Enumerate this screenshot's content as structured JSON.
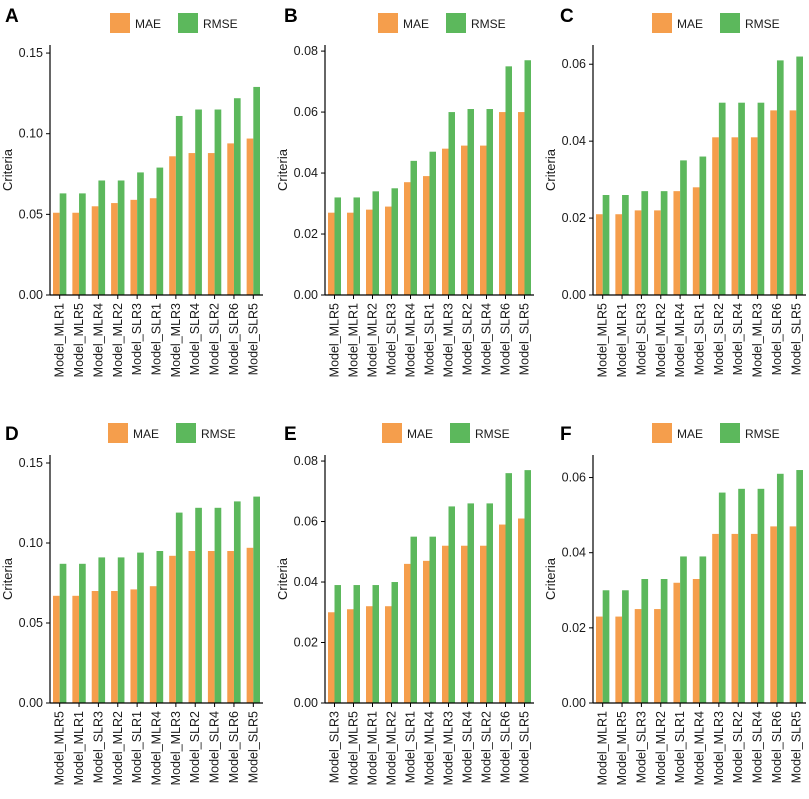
{
  "colors": {
    "MAE": "#F59E4C",
    "RMSE": "#5CB85C",
    "axis": "#000000",
    "text": "#1a1a1a"
  },
  "legend": {
    "entries": [
      "MAE",
      "RMSE"
    ]
  },
  "chart_data": [
    {
      "panel": "A",
      "type": "bar",
      "ylabel": "Criteria",
      "xlabel": "",
      "ylim": [
        0,
        0.155
      ],
      "yticks": [
        0.0,
        0.05,
        0.1,
        0.15
      ],
      "ytick_labels": [
        "0.00",
        "0.05",
        "0.10",
        "0.15"
      ],
      "legend_position": "top-center",
      "categories": [
        "Model_MLR1",
        "Model_MLR5",
        "Model_MLR4",
        "Model_MLR2",
        "Model_SLR3",
        "Model_SLR1",
        "Model_MLR3",
        "Model_SLR4",
        "Model_SLR2",
        "Model_SLR6",
        "Model_SLR5"
      ],
      "series": [
        {
          "name": "MAE",
          "values": [
            0.051,
            0.051,
            0.055,
            0.057,
            0.059,
            0.06,
            0.086,
            0.088,
            0.088,
            0.094,
            0.097
          ]
        },
        {
          "name": "RMSE",
          "values": [
            0.063,
            0.063,
            0.071,
            0.071,
            0.076,
            0.079,
            0.111,
            0.115,
            0.115,
            0.122,
            0.129
          ]
        }
      ]
    },
    {
      "panel": "B",
      "type": "bar",
      "ylabel": "Criteria",
      "xlabel": "",
      "ylim": [
        0,
        0.082
      ],
      "yticks": [
        0.0,
        0.02,
        0.04,
        0.06,
        0.08
      ],
      "ytick_labels": [
        "0.00",
        "0.02",
        "0.04",
        "0.06",
        "0.08"
      ],
      "legend_position": "top-center",
      "categories": [
        "Model_MLR5",
        "Model_MLR1",
        "Model_MLR2",
        "Model_SLR3",
        "Model_MLR4",
        "Model_SLR1",
        "Model_MLR3",
        "Model_SLR2",
        "Model_SLR4",
        "Model_SLR6",
        "Model_SLR5"
      ],
      "series": [
        {
          "name": "MAE",
          "values": [
            0.027,
            0.027,
            0.028,
            0.029,
            0.037,
            0.039,
            0.048,
            0.049,
            0.049,
            0.06,
            0.06
          ]
        },
        {
          "name": "RMSE",
          "values": [
            0.032,
            0.032,
            0.034,
            0.035,
            0.044,
            0.047,
            0.06,
            0.061,
            0.061,
            0.075,
            0.077
          ]
        }
      ]
    },
    {
      "panel": "C",
      "type": "bar",
      "ylabel": "Criteria",
      "xlabel": "",
      "ylim": [
        0,
        0.065
      ],
      "yticks": [
        0.0,
        0.02,
        0.04,
        0.06
      ],
      "ytick_labels": [
        "0.00",
        "0.02",
        "0.04",
        "0.06"
      ],
      "legend_position": "top-center",
      "categories": [
        "Model_MLR5",
        "Model_MLR1",
        "Model_SLR3",
        "Model_MLR2",
        "Model_MLR4",
        "Model_SLR1",
        "Model_SLR2",
        "Model_SLR4",
        "Model_MLR3",
        "Model_SLR6",
        "Model_SLR5"
      ],
      "series": [
        {
          "name": "MAE",
          "values": [
            0.021,
            0.021,
            0.022,
            0.022,
            0.027,
            0.028,
            0.041,
            0.041,
            0.041,
            0.048,
            0.048
          ]
        },
        {
          "name": "RMSE",
          "values": [
            0.026,
            0.026,
            0.027,
            0.027,
            0.035,
            0.036,
            0.05,
            0.05,
            0.05,
            0.061,
            0.062
          ]
        }
      ]
    },
    {
      "panel": "D",
      "type": "bar",
      "ylabel": "Criteria",
      "xlabel": "",
      "ylim": [
        0,
        0.155
      ],
      "yticks": [
        0.0,
        0.05,
        0.1,
        0.15
      ],
      "ytick_labels": [
        "0.00",
        "0.05",
        "0.10",
        "0.15"
      ],
      "legend_position": "top-center",
      "categories": [
        "Model_MLR5",
        "Model_MLR1",
        "Model_SLR3",
        "Model_MLR2",
        "Model_SLR1",
        "Model_MLR4",
        "Model_MLR3",
        "Model_SLR2",
        "Model_SLR4",
        "Model_SLR6",
        "Model_SLR5"
      ],
      "series": [
        {
          "name": "MAE",
          "values": [
            0.067,
            0.067,
            0.07,
            0.07,
            0.071,
            0.073,
            0.092,
            0.095,
            0.095,
            0.095,
            0.097
          ]
        },
        {
          "name": "RMSE",
          "values": [
            0.087,
            0.087,
            0.091,
            0.091,
            0.094,
            0.095,
            0.119,
            0.122,
            0.122,
            0.126,
            0.129
          ]
        }
      ]
    },
    {
      "panel": "E",
      "type": "bar",
      "ylabel": "Criteria",
      "xlabel": "",
      "ylim": [
        0,
        0.082
      ],
      "yticks": [
        0.0,
        0.02,
        0.04,
        0.06,
        0.08
      ],
      "ytick_labels": [
        "0.00",
        "0.02",
        "0.04",
        "0.06",
        "0.08"
      ],
      "legend_position": "top-center",
      "categories": [
        "Model_SLR3",
        "Model_MLR5",
        "Model_MLR1",
        "Model_MLR2",
        "Model_SLR1",
        "Model_MLR4",
        "Model_MLR3",
        "Model_SLR4",
        "Model_SLR2",
        "Model_SLR6",
        "Model_SLR5"
      ],
      "series": [
        {
          "name": "MAE",
          "values": [
            0.03,
            0.031,
            0.032,
            0.032,
            0.046,
            0.047,
            0.052,
            0.052,
            0.052,
            0.059,
            0.061
          ]
        },
        {
          "name": "RMSE",
          "values": [
            0.039,
            0.039,
            0.039,
            0.04,
            0.055,
            0.055,
            0.065,
            0.066,
            0.066,
            0.076,
            0.077
          ]
        }
      ]
    },
    {
      "panel": "F",
      "type": "bar",
      "ylabel": "Criteria",
      "xlabel": "",
      "ylim": [
        0,
        0.066
      ],
      "yticks": [
        0.0,
        0.02,
        0.04,
        0.06
      ],
      "ytick_labels": [
        "0.00",
        "0.02",
        "0.04",
        "0.06"
      ],
      "legend_position": "top-center",
      "categories": [
        "Model_MLR1",
        "Model_MLR5",
        "Model_SLR3",
        "Model_MLR2",
        "Model_SLR1",
        "Model_MLR4",
        "Model_MLR3",
        "Model_SLR2",
        "Model_SLR4",
        "Model_SLR6",
        "Model_SLR5"
      ],
      "series": [
        {
          "name": "MAE",
          "values": [
            0.023,
            0.023,
            0.025,
            0.025,
            0.032,
            0.033,
            0.045,
            0.045,
            0.045,
            0.047,
            0.047
          ]
        },
        {
          "name": "RMSE",
          "values": [
            0.03,
            0.03,
            0.033,
            0.033,
            0.039,
            0.039,
            0.056,
            0.057,
            0.057,
            0.061,
            0.062
          ]
        }
      ]
    }
  ]
}
